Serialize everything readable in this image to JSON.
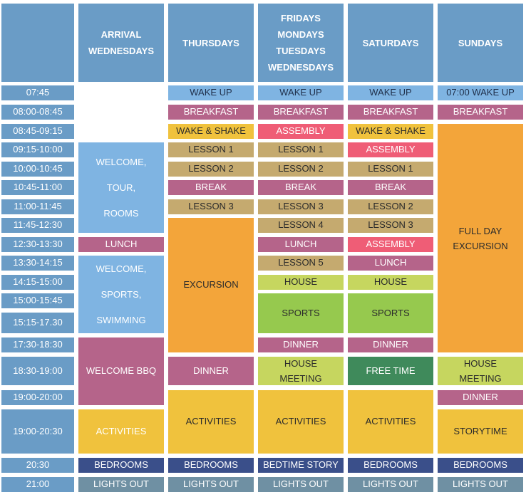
{
  "colors": {
    "steel": "#6a9cc6",
    "sky": "#7fb4e2",
    "mauve": "#b5648a",
    "gold": "#f0c23d",
    "rose": "#ef5d76",
    "tan": "#c5aa6f",
    "orange": "#f3a53a",
    "lime": "#c6d65f",
    "green": "#96c94e",
    "dark_green": "#3f8a5b",
    "navy": "#3a4f8a",
    "slate": "#6f90a3"
  },
  "headers": {
    "arrival": "ARRIVAL\nWEDNESDAYS",
    "thursdays": "THURSDAYS",
    "weekdays": "FRIDAYS\nMONDAYS\nTUESDAYS\nWEDNESDAYS",
    "saturdays": "SATURDAYS",
    "sundays": "SUNDAYS"
  },
  "times": [
    "07:45",
    "08:00-08:45",
    "08:45-09:15",
    "09:15-10:00",
    "10:00-10:45",
    "10:45-11:00",
    "11:00-11:45",
    "11:45-12:30",
    "12:30-13:30",
    "13:30-14:15",
    "14:15-15:00",
    "15:00-15:45",
    "15:15-17.30",
    "17:30-18:30",
    "18:30-19:00",
    "19:00-20:00",
    "19:00-20:30",
    "20:30",
    "21:00"
  ],
  "arrival": {
    "welcome_tour": "WELCOME,\nTOUR,\nROOMS",
    "lunch": "LUNCH",
    "welcome_sports": "WELCOME,\nSPORTS,\nSWIMMING",
    "bbq": "WELCOME BBQ",
    "activities": "ACTIVITIES",
    "bedrooms": "BEDROOMS",
    "lights_out": "LIGHTS OUT"
  },
  "thursdays": {
    "wake_up": "WAKE UP",
    "breakfast": "BREAKFAST",
    "wake_shake": "WAKE & SHAKE",
    "lesson1": "LESSON 1",
    "lesson2": "LESSON 2",
    "break": "BREAK",
    "lesson3": "LESSON 3",
    "excursion": "EXCURSION",
    "dinner": "DINNER",
    "activities": "ACTIVITIES",
    "bedrooms": "BEDROOMS",
    "lights_out": "LIGHTS OUT"
  },
  "weekdays": {
    "wake_up": "WAKE UP",
    "breakfast": "BREAKFAST",
    "assembly": "ASSEMBLY",
    "lesson1": "LESSON 1",
    "lesson2": "LESSON 2",
    "break": "BREAK",
    "lesson3": "LESSON 3",
    "lesson4": "LESSON 4",
    "lunch": "LUNCH",
    "lesson5": "LESSON 5",
    "house": "HOUSE",
    "sports": "SPORTS",
    "dinner": "DINNER",
    "house_meeting": "HOUSE\nMEETING",
    "activities": "ACTIVITIES",
    "bedtime_story": "BEDTIME STORY",
    "lights_out": "LIGHTS OUT"
  },
  "saturdays": {
    "wake_up": "WAKE UP",
    "breakfast": "BREAKFAST",
    "wake_shake": "WAKE & SHAKE",
    "assembly1": "ASSEMBLY",
    "lesson1": "LESSON 1",
    "break": "BREAK",
    "lesson2": "LESSON 2",
    "lesson3": "LESSON 3",
    "assembly2": "ASSEMBLY",
    "lunch": "LUNCH",
    "house": "HOUSE",
    "sports": "SPORTS",
    "dinner": "DINNER",
    "free_time": "FREE TIME",
    "activities": "ACTIVITIES",
    "bedrooms": "BEDROOMS",
    "lights_out": "LIGHTS OUT"
  },
  "sundays": {
    "wake_up": "07:00 WAKE UP",
    "breakfast": "BREAKFAST",
    "excursion": "FULL DAY\nEXCURSION",
    "house_meeting": "HOUSE\nMEETING",
    "dinner": "DINNER",
    "storytime": "STORYTIME",
    "bedrooms": "BEDROOMS",
    "lights_out": "LIGHTS OUT"
  }
}
